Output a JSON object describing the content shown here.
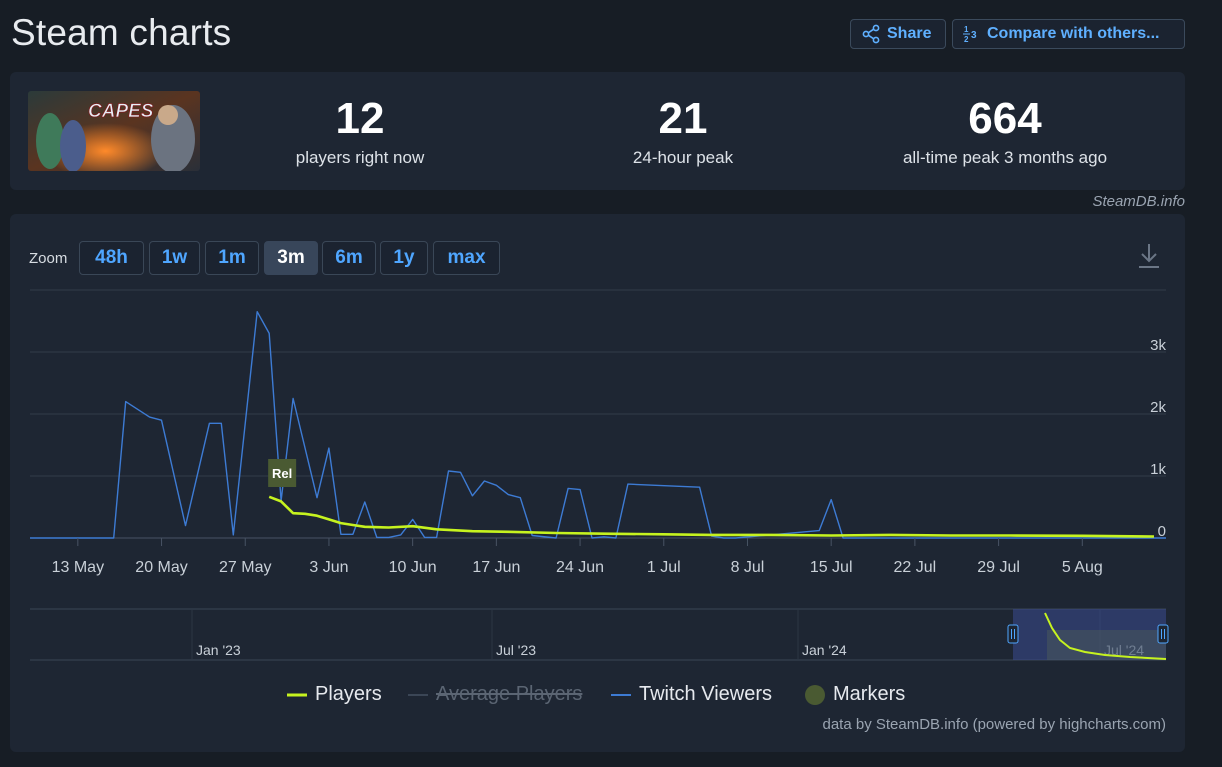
{
  "header": {
    "title": "Steam charts",
    "share_label": "Share",
    "compare_label": "Compare with others..."
  },
  "stats": {
    "players_now": "12",
    "players_now_label": "players right now",
    "peak_24h": "21",
    "peak_24h_label": "24-hour peak",
    "all_time_peak": "664",
    "all_time_peak_label": "all-time peak 3 months ago",
    "banner_title": "CAPES"
  },
  "credit": "SteamDB.info",
  "zoom": {
    "label": "Zoom",
    "options": [
      "48h",
      "1w",
      "1m",
      "3m",
      "6m",
      "1y",
      "max"
    ],
    "selected": "3m"
  },
  "legend": {
    "players": "Players",
    "average_players": "Average Players",
    "twitch_viewers": "Twitch Viewers",
    "markers": "Markers"
  },
  "attribution": "data by SteamDB.info (powered by highcharts.com)",
  "colors": {
    "players": "#c6f31f",
    "twitch": "#3d7bd4",
    "marker": "#4a5a32",
    "accent": "#4fa6ff",
    "background": "#171d25",
    "panel": "#1e2633"
  },
  "chart_data": {
    "type": "line",
    "x_unit": "day",
    "x_start": "2024-05-09",
    "x_end": "2024-08-12",
    "x_tick_labels": [
      "13 May",
      "20 May",
      "27 May",
      "3 Jun",
      "10 Jun",
      "17 Jun",
      "24 Jun",
      "1 Jul",
      "8 Jul",
      "15 Jul",
      "22 Jul",
      "29 Jul",
      "5 Aug"
    ],
    "x_tick_dates": [
      "2024-05-13",
      "2024-05-20",
      "2024-05-27",
      "2024-06-03",
      "2024-06-10",
      "2024-06-17",
      "2024-06-24",
      "2024-07-01",
      "2024-07-08",
      "2024-07-15",
      "2024-07-22",
      "2024-07-29",
      "2024-08-05"
    ],
    "y_tick_labels": [
      "0",
      "1k",
      "2k",
      "3k"
    ],
    "y_ticks": [
      0,
      1000,
      2000,
      3000
    ],
    "ylim": [
      0,
      4000
    ],
    "grid": true,
    "series": [
      {
        "name": "Players",
        "dates": [
          "2024-05-29",
          "2024-05-30",
          "2024-05-31",
          "2024-06-01",
          "2024-06-02",
          "2024-06-03",
          "2024-06-04",
          "2024-06-05",
          "2024-06-06",
          "2024-06-08",
          "2024-06-10",
          "2024-06-12",
          "2024-06-15",
          "2024-06-18",
          "2024-06-22",
          "2024-06-26",
          "2024-07-01",
          "2024-07-05",
          "2024-07-10",
          "2024-07-15",
          "2024-07-20",
          "2024-07-25",
          "2024-07-30",
          "2024-08-05",
          "2024-08-11"
        ],
        "values": [
          664,
          590,
          400,
          390,
          360,
          300,
          240,
          210,
          180,
          170,
          190,
          140,
          110,
          100,
          80,
          70,
          60,
          50,
          50,
          40,
          50,
          40,
          40,
          35,
          25
        ]
      },
      {
        "name": "Average Players",
        "hidden": true,
        "dates": [],
        "values": []
      },
      {
        "name": "Twitch Viewers",
        "dates": [
          "2024-05-09",
          "2024-05-16",
          "2024-05-17",
          "2024-05-19",
          "2024-05-20",
          "2024-05-22",
          "2024-05-24",
          "2024-05-25",
          "2024-05-26",
          "2024-05-28",
          "2024-05-29",
          "2024-05-30",
          "2024-05-31",
          "2024-06-02",
          "2024-06-03",
          "2024-06-04",
          "2024-06-05",
          "2024-06-06",
          "2024-06-07",
          "2024-06-08",
          "2024-06-09",
          "2024-06-10",
          "2024-06-11",
          "2024-06-12",
          "2024-06-13",
          "2024-06-14",
          "2024-06-15",
          "2024-06-16",
          "2024-06-17",
          "2024-06-18",
          "2024-06-19",
          "2024-06-20",
          "2024-06-22",
          "2024-06-23",
          "2024-06-24",
          "2024-06-25",
          "2024-06-26",
          "2024-06-27",
          "2024-06-28",
          "2024-07-04",
          "2024-07-05",
          "2024-07-06",
          "2024-07-07",
          "2024-07-14",
          "2024-07-15",
          "2024-07-16",
          "2024-08-12"
        ],
        "values": [
          0,
          0,
          2200,
          1950,
          1900,
          200,
          1850,
          1850,
          50,
          3650,
          3300,
          600,
          2250,
          650,
          1450,
          60,
          60,
          580,
          10,
          10,
          50,
          300,
          10,
          10,
          1080,
          1060,
          680,
          920,
          850,
          700,
          650,
          40,
          0,
          800,
          780,
          0,
          20,
          0,
          870,
          820,
          30,
          0,
          0,
          120,
          620,
          0,
          0
        ]
      }
    ],
    "markers": [
      {
        "date": "2024-05-29",
        "label": "Rel"
      }
    ],
    "navigator": {
      "tick_labels": [
        "Jan '23",
        "Jul '23",
        "Jan '24",
        "Jul '24"
      ]
    }
  }
}
